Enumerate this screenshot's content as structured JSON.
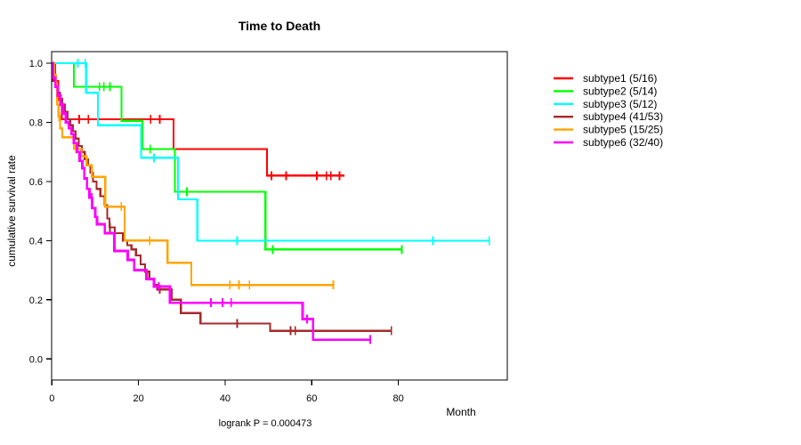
{
  "title": "Time to Death",
  "ylabel": "cumulative survival rate",
  "xlabel": "Month",
  "footnote": "logrank P = 0.000473",
  "legend": {
    "entries": [
      "subtype1 (5/16)",
      "subtype2 (5/14)",
      "subtype3 (5/12)",
      "subtype4 (41/53)",
      "subtype5 (15/25)",
      "subtype6 (32/40)"
    ]
  },
  "chart_data": {
    "type": "line",
    "variant": "kaplan-meier-step",
    "title": "Time to Death",
    "xlabel": "Month",
    "ylabel": "cumulative survival rate",
    "footnote": "logrank P = 0.000473",
    "xlim": [
      0,
      105
    ],
    "ylim": [
      0,
      1
    ],
    "x_ticks": [
      0,
      20,
      40,
      60,
      80
    ],
    "y_ticks": [
      0.0,
      0.2,
      0.4,
      0.6,
      0.8,
      1.0
    ],
    "grid": false,
    "legend_position": "right-outside",
    "series": [
      {
        "name": "subtype1 (5/16)",
        "color": "#FF0000",
        "width": 2.2,
        "steps": [
          [
            0,
            1.0
          ],
          [
            0.7,
            0.94
          ],
          [
            1.5,
            0.875
          ],
          [
            2.3,
            0.81
          ],
          [
            28.1,
            0.71
          ],
          [
            49.7,
            0.62
          ]
        ],
        "end": 67.5,
        "censors": [
          6.3,
          8.4,
          22.8,
          24.9,
          50.7,
          54.1,
          61.2,
          63.4,
          64.4,
          66.4
        ]
      },
      {
        "name": "subtype2 (5/14)",
        "color": "#00FF00",
        "width": 2.2,
        "steps": [
          [
            0,
            1.0
          ],
          [
            5.1,
            0.92
          ],
          [
            16.1,
            0.805
          ],
          [
            20.9,
            0.71
          ],
          [
            28.4,
            0.565
          ],
          [
            49.3,
            0.37
          ]
        ],
        "end": 80.8,
        "censors": [
          11,
          12,
          13.4,
          22.7,
          31.2,
          51,
          80.8
        ]
      },
      {
        "name": "subtype3 (5/12)",
        "color": "#00FFFF",
        "width": 2.2,
        "steps": [
          [
            0,
            1.0
          ],
          [
            7.9,
            0.9
          ],
          [
            10.6,
            0.79
          ],
          [
            20.6,
            0.68
          ],
          [
            29.1,
            0.54
          ],
          [
            33.6,
            0.4
          ]
        ],
        "end": 101,
        "censors": [
          6,
          7.7,
          23.6,
          42.8,
          88,
          101
        ]
      },
      {
        "name": "subtype4 (41/53)",
        "color": "#A52A2A",
        "width": 2.2,
        "steps": [
          [
            0,
            1.0
          ],
          [
            0.3,
            0.94
          ],
          [
            0.9,
            0.92
          ],
          [
            1.4,
            0.9
          ],
          [
            1.9,
            0.88
          ],
          [
            2.4,
            0.86
          ],
          [
            3,
            0.835
          ],
          [
            3.6,
            0.81
          ],
          [
            4.2,
            0.79
          ],
          [
            4.8,
            0.77
          ],
          [
            5.5,
            0.745
          ],
          [
            6.2,
            0.72
          ],
          [
            6.9,
            0.7
          ],
          [
            7.6,
            0.675
          ],
          [
            8.3,
            0.655
          ],
          [
            8.9,
            0.63
          ],
          [
            9.5,
            0.6
          ],
          [
            10.3,
            0.575
          ],
          [
            11.2,
            0.55
          ],
          [
            12.2,
            0.52
          ],
          [
            12.8,
            0.475
          ],
          [
            13.3,
            0.445
          ],
          [
            14.5,
            0.425
          ],
          [
            16.4,
            0.4
          ],
          [
            17.4,
            0.385
          ],
          [
            18.4,
            0.37
          ],
          [
            19.4,
            0.35
          ],
          [
            20.5,
            0.32
          ],
          [
            21.5,
            0.295
          ],
          [
            22.5,
            0.27
          ],
          [
            23.5,
            0.25
          ],
          [
            24.3,
            0.235
          ],
          [
            27.7,
            0.2
          ],
          [
            29.8,
            0.155
          ],
          [
            34.3,
            0.12
          ],
          [
            50.4,
            0.095
          ]
        ],
        "end": 78.4,
        "censors": [
          0.8,
          13.4,
          24.9,
          42.8,
          55.1,
          56.2,
          78.4
        ]
      },
      {
        "name": "subtype5 (15/25)",
        "color": "#FFA500",
        "width": 2.4,
        "steps": [
          [
            0,
            1.0
          ],
          [
            0.5,
            0.96
          ],
          [
            0.9,
            0.92
          ],
          [
            1.2,
            0.86
          ],
          [
            1.5,
            0.82
          ],
          [
            1.9,
            0.78
          ],
          [
            2.4,
            0.75
          ],
          [
            5.1,
            0.71
          ],
          [
            6.8,
            0.685
          ],
          [
            8,
            0.655
          ],
          [
            9.2,
            0.615
          ],
          [
            12.3,
            0.515
          ],
          [
            16.8,
            0.4
          ],
          [
            26.7,
            0.325
          ],
          [
            32.2,
            0.25
          ]
        ],
        "end": 65,
        "censors": [
          1.7,
          5.6,
          16,
          22.6,
          41.1,
          43.2,
          45.6,
          65
        ]
      },
      {
        "name": "subtype6 (32/40)",
        "color": "#FF00FF",
        "width": 2.8,
        "steps": [
          [
            0,
            1.0
          ],
          [
            0.3,
            0.95
          ],
          [
            0.8,
            0.92
          ],
          [
            1.4,
            0.89
          ],
          [
            2,
            0.86
          ],
          [
            2.6,
            0.83
          ],
          [
            3.2,
            0.8
          ],
          [
            3.9,
            0.78
          ],
          [
            4.5,
            0.76
          ],
          [
            5.1,
            0.73
          ],
          [
            5.8,
            0.7
          ],
          [
            6.4,
            0.67
          ],
          [
            7,
            0.645
          ],
          [
            7.5,
            0.61
          ],
          [
            8.1,
            0.575
          ],
          [
            8.7,
            0.545
          ],
          [
            9.3,
            0.51
          ],
          [
            10,
            0.48
          ],
          [
            10.4,
            0.455
          ],
          [
            12.2,
            0.425
          ],
          [
            14.4,
            0.365
          ],
          [
            17.5,
            0.335
          ],
          [
            19,
            0.3
          ],
          [
            21.8,
            0.27
          ],
          [
            23.6,
            0.245
          ],
          [
            27.3,
            0.19
          ],
          [
            57.9,
            0.135
          ],
          [
            60.3,
            0.065
          ]
        ],
        "end": 73.5,
        "censors": [
          9.2,
          24.7,
          36.7,
          39.4,
          41.4,
          58.9,
          73.5
        ]
      }
    ]
  }
}
